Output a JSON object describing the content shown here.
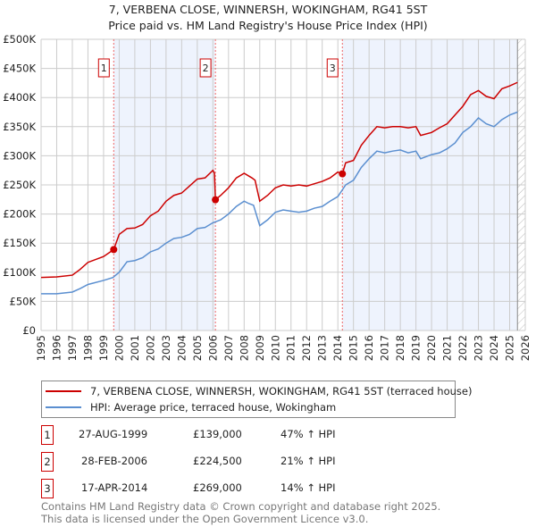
{
  "title": "7, VERBENA CLOSE, WINNERSH, WOKINGHAM, RG41 5ST",
  "subtitle": "Price paid vs. HM Land Registry's House Price Index (HPI)",
  "chart_data": {
    "type": "line",
    "title": "7, VERBENA CLOSE, WINNERSH, WOKINGHAM, RG41 5ST",
    "subtitle": "Price paid vs. HM Land Registry's House Price Index (HPI)",
    "xlim": [
      1995,
      2026
    ],
    "ylim": [
      0,
      500000
    ],
    "yticks": [
      0,
      50000,
      100000,
      150000,
      200000,
      250000,
      300000,
      350000,
      400000,
      450000,
      500000
    ],
    "yticklabels": [
      "£0",
      "£50K",
      "£100K",
      "£150K",
      "£200K",
      "£250K",
      "£300K",
      "£350K",
      "£400K",
      "£450K",
      "£500K"
    ],
    "xticks": [
      1995,
      1996,
      1997,
      1998,
      1999,
      2000,
      2001,
      2002,
      2003,
      2004,
      2005,
      2006,
      2007,
      2008,
      2009,
      2010,
      2011,
      2012,
      2013,
      2014,
      2015,
      2016,
      2017,
      2018,
      2019,
      2020,
      2021,
      2022,
      2023,
      2024,
      2025,
      2026
    ],
    "grid": true,
    "data_end": 2025.5,
    "colors": {
      "property": "#cc0000",
      "hpi": "#5b8fd0",
      "band": "#eef3fd"
    },
    "series": [
      {
        "name": "7, VERBENA CLOSE, WINNERSH, WOKINGHAM, RG41 5ST (terraced house)",
        "x": [
          1995,
          1996,
          1997,
          1997.5,
          1998,
          1999,
          1999.65,
          2000,
          2000.5,
          2001,
          2001.5,
          2002,
          2002.5,
          2003,
          2003.5,
          2004,
          2004.5,
          2005,
          2005.5,
          2006,
          2006.1,
          2006.16,
          2006.5,
          2007,
          2007.5,
          2008,
          2008.5,
          2008.7,
          2009,
          2009.5,
          2010,
          2010.5,
          2011,
          2011.5,
          2012,
          2012.5,
          2013,
          2013.5,
          2014,
          2014.29,
          2014.5,
          2015,
          2015.5,
          2016,
          2016.5,
          2017,
          2017.5,
          2018,
          2018.5,
          2019,
          2019.3,
          2020,
          2020.5,
          2021,
          2021.5,
          2022,
          2022.5,
          2023,
          2023.5,
          2024,
          2024.5,
          2025,
          2025.5
        ],
        "y": [
          91000,
          92000,
          95000,
          105000,
          117000,
          127000,
          139000,
          165000,
          175000,
          176000,
          182000,
          197000,
          205000,
          222000,
          232000,
          236000,
          248000,
          260000,
          262000,
          275000,
          270000,
          224500,
          232000,
          245000,
          262000,
          270000,
          262000,
          258000,
          222000,
          232000,
          245000,
          250000,
          248000,
          250000,
          248000,
          252000,
          256000,
          262000,
          272000,
          269000,
          288000,
          292000,
          318000,
          335000,
          350000,
          348000,
          350000,
          350000,
          348000,
          350000,
          335000,
          340000,
          348000,
          355000,
          370000,
          385000,
          405000,
          412000,
          402000,
          398000,
          415000,
          420000,
          426000
        ]
      },
      {
        "name": "HPI: Average price, terraced house, Wokingham",
        "x": [
          1995,
          1996,
          1997,
          1997.5,
          1998,
          1999,
          1999.6,
          2000,
          2000.5,
          2001,
          2001.5,
          2002,
          2002.5,
          2003,
          2003.5,
          2004,
          2004.5,
          2005,
          2005.5,
          2006,
          2006.5,
          2007,
          2007.5,
          2008,
          2008.3,
          2008.6,
          2009,
          2009.5,
          2010,
          2010.5,
          2011,
          2011.5,
          2012,
          2012.5,
          2013,
          2013.5,
          2014,
          2014.5,
          2015,
          2015.5,
          2016,
          2016.5,
          2017,
          2017.5,
          2018,
          2018.5,
          2019,
          2019.3,
          2020,
          2020.5,
          2021,
          2021.5,
          2022,
          2022.5,
          2023,
          2023.5,
          2024,
          2024.5,
          2025,
          2025.5
        ],
        "y": [
          63000,
          63000,
          66000,
          72000,
          79000,
          86000,
          91000,
          100000,
          118000,
          120000,
          125000,
          135000,
          140000,
          150000,
          158000,
          160000,
          165000,
          175000,
          177000,
          185000,
          190000,
          200000,
          213000,
          222000,
          218000,
          215000,
          180000,
          190000,
          203000,
          207000,
          205000,
          203000,
          205000,
          210000,
          213000,
          222000,
          230000,
          250000,
          258000,
          280000,
          295000,
          308000,
          305000,
          308000,
          310000,
          305000,
          308000,
          295000,
          302000,
          305000,
          312000,
          322000,
          340000,
          350000,
          365000,
          355000,
          350000,
          362000,
          370000,
          375000
        ]
      }
    ],
    "sales": [
      {
        "label": "1",
        "x": 1999.65,
        "price": 139000,
        "date": "27-AUG-1999",
        "price_text": "£139,000",
        "hpi_text": "47% ↑ HPI"
      },
      {
        "label": "2",
        "x": 2006.16,
        "price": 224500,
        "date": "28-FEB-2006",
        "price_text": "£224,500",
        "hpi_text": "21% ↑ HPI"
      },
      {
        "label": "3",
        "x": 2014.29,
        "price": 269000,
        "date": "17-APR-2014",
        "price_text": "£269,000",
        "hpi_text": "14% ↑ HPI"
      }
    ]
  },
  "legend": {
    "property": "7, VERBENA CLOSE, WINNERSH, WOKINGHAM, RG41 5ST (terraced house)",
    "hpi": "HPI: Average price, terraced house, Wokingham"
  },
  "footer": {
    "line1": "Contains HM Land Registry data © Crown copyright and database right 2025.",
    "line2": "This data is licensed under the Open Government Licence v3.0."
  }
}
